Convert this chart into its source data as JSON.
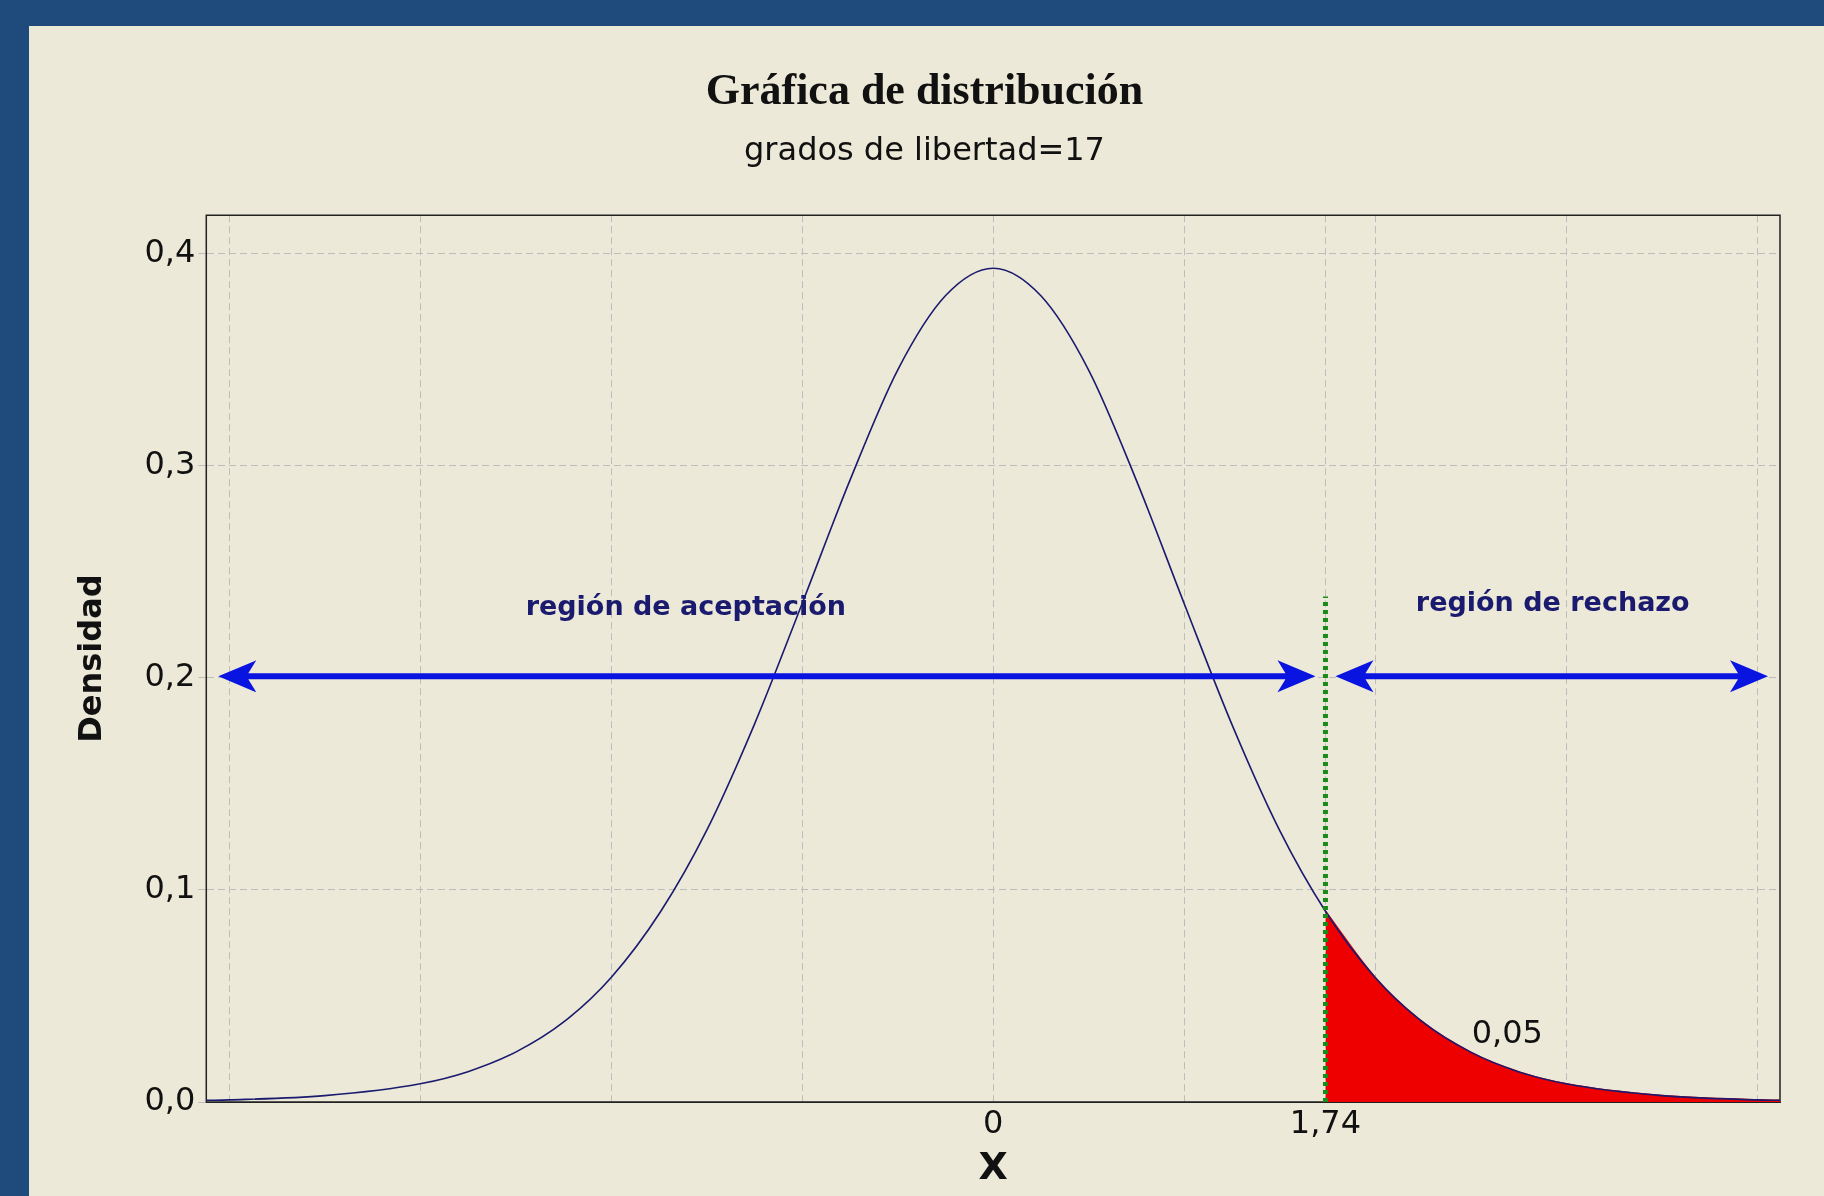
{
  "chart_data": {
    "type": "line",
    "title": "Gráfica de distribución",
    "subtitle": "grados de libertad=17",
    "xlabel": "X",
    "ylabel": "Densidad",
    "xlim": [
      -4.12,
      4.12
    ],
    "ylim": [
      0,
      0.418
    ],
    "xticks": [
      {
        "value": -4,
        "label": null
      },
      {
        "value": -3,
        "label": null
      },
      {
        "value": -2,
        "label": null
      },
      {
        "value": -1,
        "label": null
      },
      {
        "value": 0,
        "label": "0"
      },
      {
        "value": 1,
        "label": null
      },
      {
        "value": 1.74,
        "label": "1,74"
      },
      {
        "value": 2,
        "label": null
      },
      {
        "value": 3,
        "label": null
      },
      {
        "value": 4,
        "label": null
      }
    ],
    "yticks": [
      {
        "value": 0,
        "label": "0,0"
      },
      {
        "value": 0.1,
        "label": "0,1"
      },
      {
        "value": 0.2,
        "label": "0,2"
      },
      {
        "value": 0.3,
        "label": "0,3"
      },
      {
        "value": 0.4,
        "label": "0,4"
      }
    ],
    "grid": true,
    "legend": false,
    "marker": "none",
    "line_style": "solid",
    "series": [
      {
        "type": "line",
        "color": "#1a1a6e",
        "x": [
          -4.12,
          -4,
          -3.5,
          -3,
          -2.75,
          -2.5,
          -2.25,
          -2,
          -1.74,
          -1.5,
          -1.25,
          -1,
          -0.75,
          -0.5,
          -0.25,
          0,
          0.25,
          0.5,
          0.75,
          1,
          1.25,
          1.5,
          1.74,
          2,
          2.25,
          2.5,
          2.75,
          3,
          3.5,
          4,
          4.12
        ],
        "values": [
          0.0008,
          0.001,
          0.003,
          0.0086,
          0.0143,
          0.0235,
          0.0376,
          0.0587,
          0.0899,
          0.128,
          0.178,
          0.235,
          0.293,
          0.345,
          0.38,
          0.393,
          0.38,
          0.345,
          0.293,
          0.235,
          0.178,
          0.128,
          0.0899,
          0.0587,
          0.0376,
          0.0235,
          0.0143,
          0.0086,
          0.003,
          0.001,
          0.0008
        ]
      },
      {
        "type": "area",
        "color": "#ee0000",
        "x": [
          1.74,
          2,
          2.25,
          2.5,
          2.75,
          3,
          3.5,
          4,
          4.12
        ],
        "values": [
          0.0899,
          0.0587,
          0.0376,
          0.0235,
          0.0143,
          0.0086,
          0.003,
          0.001,
          0.0008
        ]
      }
    ],
    "ref_lines": [
      {
        "axis": "x",
        "value": 1.74,
        "color": "#1a8a1a",
        "line_style": "dotted"
      }
    ],
    "annotations": [
      "región de aceptación",
      "región de rechazo",
      "0,05"
    ]
  }
}
